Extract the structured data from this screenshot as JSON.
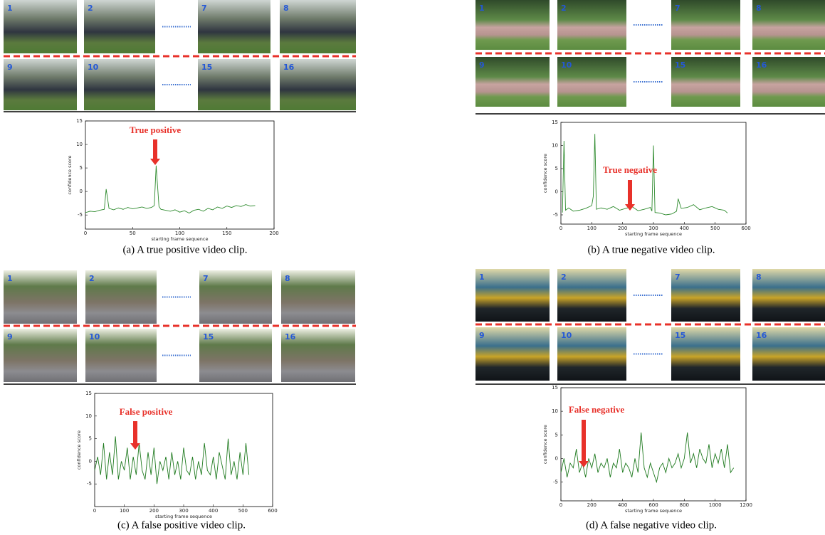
{
  "panels": [
    {
      "frames": [
        [
          1,
          2,
          7,
          8
        ],
        [
          9,
          10,
          15,
          16
        ]
      ],
      "caption": "(a) A true positive video clip."
    },
    {
      "frames": [
        [
          1,
          2,
          7,
          8
        ],
        [
          9,
          10,
          15,
          16
        ]
      ],
      "caption": "(b) A true negative video clip."
    },
    {
      "frames": [
        [
          1,
          2,
          7,
          8
        ],
        [
          9,
          10,
          15,
          16
        ]
      ],
      "caption": "(c) A false positive video clip."
    },
    {
      "frames": [
        [
          1,
          2,
          7,
          8
        ],
        [
          9,
          10,
          15,
          16
        ]
      ],
      "caption": "(d) A false negative video clip."
    }
  ],
  "chart_data": [
    {
      "type": "line",
      "x_label": "starting frame sequence",
      "y_label": "confidence score",
      "annotation": "True positive",
      "color": "#2e8b2e",
      "xlim": [
        0,
        200
      ],
      "xticks": [
        0,
        50,
        100,
        150,
        200
      ],
      "ylim": [
        -8,
        15
      ],
      "yticks": [
        -5,
        0,
        5,
        10,
        15
      ],
      "x": [
        0,
        5,
        10,
        15,
        20,
        22,
        25,
        30,
        35,
        40,
        45,
        50,
        55,
        60,
        65,
        70,
        73,
        75,
        78,
        80,
        85,
        90,
        95,
        100,
        105,
        110,
        115,
        120,
        125,
        130,
        135,
        140,
        145,
        150,
        155,
        160,
        165,
        170,
        175,
        180
      ],
      "values": [
        -4.5,
        -4.2,
        -4.3,
        -4.0,
        -3.8,
        0.5,
        -3.6,
        -3.9,
        -3.5,
        -3.8,
        -3.4,
        -3.7,
        -3.5,
        -3.3,
        -3.6,
        -3.4,
        -3.0,
        5.5,
        -3.2,
        -3.8,
        -4.0,
        -4.2,
        -3.9,
        -4.4,
        -4.1,
        -4.6,
        -4.0,
        -3.8,
        -4.2,
        -3.6,
        -3.9,
        -3.3,
        -3.6,
        -3.1,
        -3.4,
        -3.0,
        -3.2,
        -2.8,
        -3.1,
        -3.0
      ]
    },
    {
      "type": "line",
      "x_label": "starting frame sequence",
      "y_label": "confidence score",
      "annotation": "True negative",
      "color": "#2e8b2e",
      "xlim": [
        0,
        600
      ],
      "xticks": [
        0,
        100,
        200,
        300,
        400,
        500,
        600
      ],
      "ylim": [
        -7,
        15
      ],
      "yticks": [
        -5,
        0,
        5,
        10,
        15
      ],
      "x": [
        5,
        10,
        15,
        25,
        40,
        60,
        80,
        100,
        105,
        110,
        115,
        130,
        150,
        170,
        190,
        210,
        230,
        250,
        270,
        290,
        295,
        300,
        305,
        320,
        340,
        360,
        375,
        380,
        390,
        410,
        430,
        450,
        470,
        490,
        510,
        530,
        540
      ],
      "values": [
        -4.5,
        11,
        -4,
        -3.5,
        -4.2,
        -4.0,
        -3.6,
        -3.0,
        -1,
        12.5,
        -3.8,
        -3.5,
        -3.8,
        -3.2,
        -4.0,
        -3.6,
        -3.2,
        -4.1,
        -3.8,
        -3.4,
        -4.2,
        10,
        -4.5,
        -4.6,
        -5.0,
        -4.8,
        -4.2,
        -1.5,
        -3.6,
        -3.4,
        -2.8,
        -3.9,
        -3.5,
        -3.2,
        -3.8,
        -4.0,
        -4.6
      ]
    },
    {
      "type": "line",
      "x_label": "starting frame sequence",
      "y_label": "confidence score",
      "annotation": "False positive",
      "color": "#1f7a1f",
      "xlim": [
        0,
        600
      ],
      "xticks": [
        0,
        100,
        200,
        300,
        400,
        500,
        600
      ],
      "ylim": [
        -10,
        15
      ],
      "yticks": [
        -5,
        0,
        5,
        10,
        15
      ],
      "x": [
        0,
        10,
        20,
        30,
        40,
        50,
        60,
        70,
        80,
        90,
        100,
        110,
        120,
        130,
        140,
        150,
        160,
        170,
        180,
        190,
        200,
        210,
        220,
        230,
        240,
        250,
        260,
        270,
        280,
        290,
        300,
        310,
        320,
        330,
        340,
        350,
        360,
        370,
        380,
        390,
        400,
        410,
        420,
        430,
        440,
        450,
        460,
        470,
        480,
        490,
        500,
        510,
        520
      ],
      "values": [
        -2,
        1,
        -3,
        4,
        -4,
        2,
        -3,
        5.5,
        -4,
        0,
        -2,
        3,
        -4,
        1,
        -3,
        4,
        -2,
        -4,
        2,
        -3,
        3,
        -5,
        0,
        -2,
        1,
        -4,
        2,
        -3,
        0,
        -4,
        3,
        -2,
        -3,
        1,
        -4,
        0,
        -3,
        4,
        -2,
        -3,
        1,
        -4,
        2,
        -1,
        -4,
        5,
        -3,
        0,
        -4,
        2,
        -3,
        4,
        -3
      ]
    },
    {
      "type": "line",
      "x_label": "starting frame sequence",
      "y_label": "confidence score",
      "annotation": "False negative",
      "color": "#1f7a1f",
      "xlim": [
        0,
        1200
      ],
      "xticks": [
        0,
        200,
        400,
        600,
        800,
        1000,
        1200
      ],
      "ylim": [
        -9,
        15
      ],
      "yticks": [
        -5,
        0,
        5,
        10,
        15
      ],
      "x": [
        0,
        20,
        40,
        60,
        80,
        100,
        120,
        140,
        160,
        180,
        200,
        220,
        240,
        260,
        280,
        300,
        320,
        340,
        360,
        380,
        400,
        420,
        440,
        460,
        480,
        500,
        520,
        540,
        560,
        580,
        600,
        620,
        640,
        660,
        680,
        700,
        720,
        740,
        760,
        780,
        800,
        820,
        840,
        860,
        880,
        900,
        920,
        940,
        960,
        980,
        1000,
        1020,
        1040,
        1060,
        1080,
        1100,
        1120
      ],
      "values": [
        -3,
        0,
        -4,
        -1,
        -2,
        2,
        -3,
        -1,
        -4,
        0,
        -2,
        1,
        -3,
        -1,
        -2,
        0,
        -4,
        -1,
        -2,
        2,
        -3,
        -1,
        -2,
        -4,
        0,
        -3,
        5.5,
        -2,
        -4,
        -1,
        -3,
        -5,
        -2,
        -1,
        -3,
        0,
        -2,
        -1,
        1,
        -2,
        0,
        5.5,
        -1,
        1,
        -2,
        2,
        0,
        -1,
        3,
        -2,
        1,
        -1,
        2,
        -2,
        3,
        -3,
        -2
      ]
    }
  ]
}
